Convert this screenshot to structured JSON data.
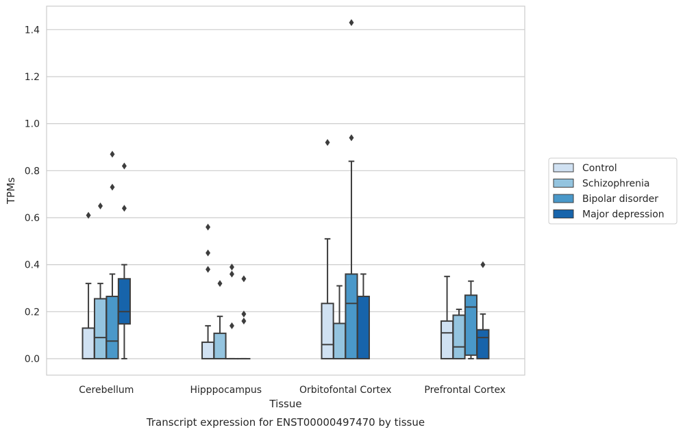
{
  "chart_data": {
    "type": "boxplot",
    "title": "",
    "caption": "Transcript expression for ENST00000497470 by tissue",
    "xlabel": "Tissue",
    "ylabel": "TPMs",
    "ylim": [
      -0.07,
      1.5
    ],
    "yticks": [
      0.0,
      0.2,
      0.4,
      0.6,
      0.8,
      1.0,
      1.2,
      1.4
    ],
    "ytick_labels": [
      "0.0",
      "0.2",
      "0.4",
      "0.6",
      "0.8",
      "1.0",
      "1.2",
      "1.4"
    ],
    "grid": "horizontal",
    "legend_position": "right",
    "categories": [
      "Cerebellum",
      "Hipppocampus",
      "Orbitofontal Cortex",
      "Prefrontal Cortex"
    ],
    "series": [
      {
        "name": "Control",
        "color": "#d0e1f2",
        "boxes": [
          {
            "whislo": 0.0,
            "q1": 0.0,
            "med": 0.0,
            "q3": 0.13,
            "whishi": 0.32,
            "fliers": [
              0.61
            ]
          },
          {
            "whislo": 0.0,
            "q1": 0.0,
            "med": 0.0,
            "q3": 0.07,
            "whishi": 0.14,
            "fliers": [
              0.38,
              0.45,
              0.56
            ]
          },
          {
            "whislo": 0.0,
            "q1": 0.0,
            "med": 0.06,
            "q3": 0.235,
            "whishi": 0.51,
            "fliers": [
              0.92
            ]
          },
          {
            "whislo": 0.0,
            "q1": 0.0,
            "med": 0.11,
            "q3": 0.16,
            "whishi": 0.35,
            "fliers": []
          }
        ]
      },
      {
        "name": "Schizophrenia",
        "color": "#94c4df",
        "boxes": [
          {
            "whislo": 0.0,
            "q1": 0.0,
            "med": 0.09,
            "q3": 0.255,
            "whishi": 0.32,
            "fliers": [
              0.65
            ]
          },
          {
            "whislo": 0.0,
            "q1": 0.0,
            "med": 0.0,
            "q3": 0.108,
            "whishi": 0.18,
            "fliers": [
              0.32
            ]
          },
          {
            "whislo": 0.0,
            "q1": 0.0,
            "med": 0.0,
            "q3": 0.15,
            "whishi": 0.31,
            "fliers": []
          },
          {
            "whislo": 0.0,
            "q1": 0.0,
            "med": 0.05,
            "q3": 0.185,
            "whishi": 0.21,
            "fliers": []
          }
        ]
      },
      {
        "name": "Bipolar disorder",
        "color": "#4a98c9",
        "boxes": [
          {
            "whislo": 0.0,
            "q1": 0.0,
            "med": 0.075,
            "q3": 0.265,
            "whishi": 0.36,
            "fliers": [
              0.73,
              0.87
            ]
          },
          {
            "whislo": 0.0,
            "q1": 0.0,
            "med": 0.0,
            "q3": 0.0,
            "whishi": 0.0,
            "fliers": [
              0.14,
              0.36,
              0.39
            ]
          },
          {
            "whislo": 0.0,
            "q1": 0.0,
            "med": 0.235,
            "q3": 0.36,
            "whishi": 0.84,
            "fliers": [
              0.94,
              1.43
            ]
          },
          {
            "whislo": 0.0,
            "q1": 0.015,
            "med": 0.22,
            "q3": 0.27,
            "whishi": 0.33,
            "fliers": []
          }
        ]
      },
      {
        "name": "Major depression",
        "color": "#1764ab",
        "boxes": [
          {
            "whislo": 0.0,
            "q1": 0.148,
            "med": 0.2,
            "q3": 0.34,
            "whishi": 0.4,
            "fliers": [
              0.64,
              0.82
            ]
          },
          {
            "whislo": 0.0,
            "q1": 0.0,
            "med": 0.0,
            "q3": 0.0,
            "whishi": 0.0,
            "fliers": [
              0.16,
              0.19,
              0.34
            ]
          },
          {
            "whislo": 0.0,
            "q1": 0.0,
            "med": 0.0,
            "q3": 0.265,
            "whishi": 0.36,
            "fliers": []
          },
          {
            "whislo": 0.0,
            "q1": 0.0,
            "med": 0.09,
            "q3": 0.123,
            "whishi": 0.19,
            "fliers": [
              0.4
            ]
          }
        ]
      }
    ]
  }
}
